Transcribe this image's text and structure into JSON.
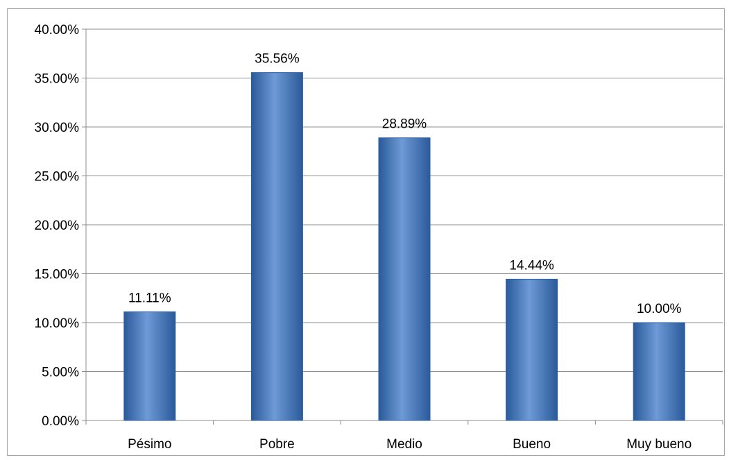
{
  "chart_data": {
    "type": "bar",
    "categories": [
      "Pésimo",
      "Pobre",
      "Medio",
      "Bueno",
      "Muy bueno"
    ],
    "values": [
      11.11,
      35.56,
      28.89,
      14.44,
      10.0
    ],
    "data_labels": [
      "11.11%",
      "35.56%",
      "28.89%",
      "14.44%",
      "10.00%"
    ],
    "y_ticks": [
      "0.00%",
      "5.00%",
      "10.00%",
      "15.00%",
      "20.00%",
      "25.00%",
      "30.00%",
      "35.00%",
      "40.00%"
    ],
    "ylim": [
      0,
      40
    ],
    "y_step": 5,
    "grid": true,
    "legend": false,
    "bar_color": "#4a7ebf",
    "bar_color_dark": "#2a5a9a",
    "bar_color_light": "#6e9ad6"
  }
}
